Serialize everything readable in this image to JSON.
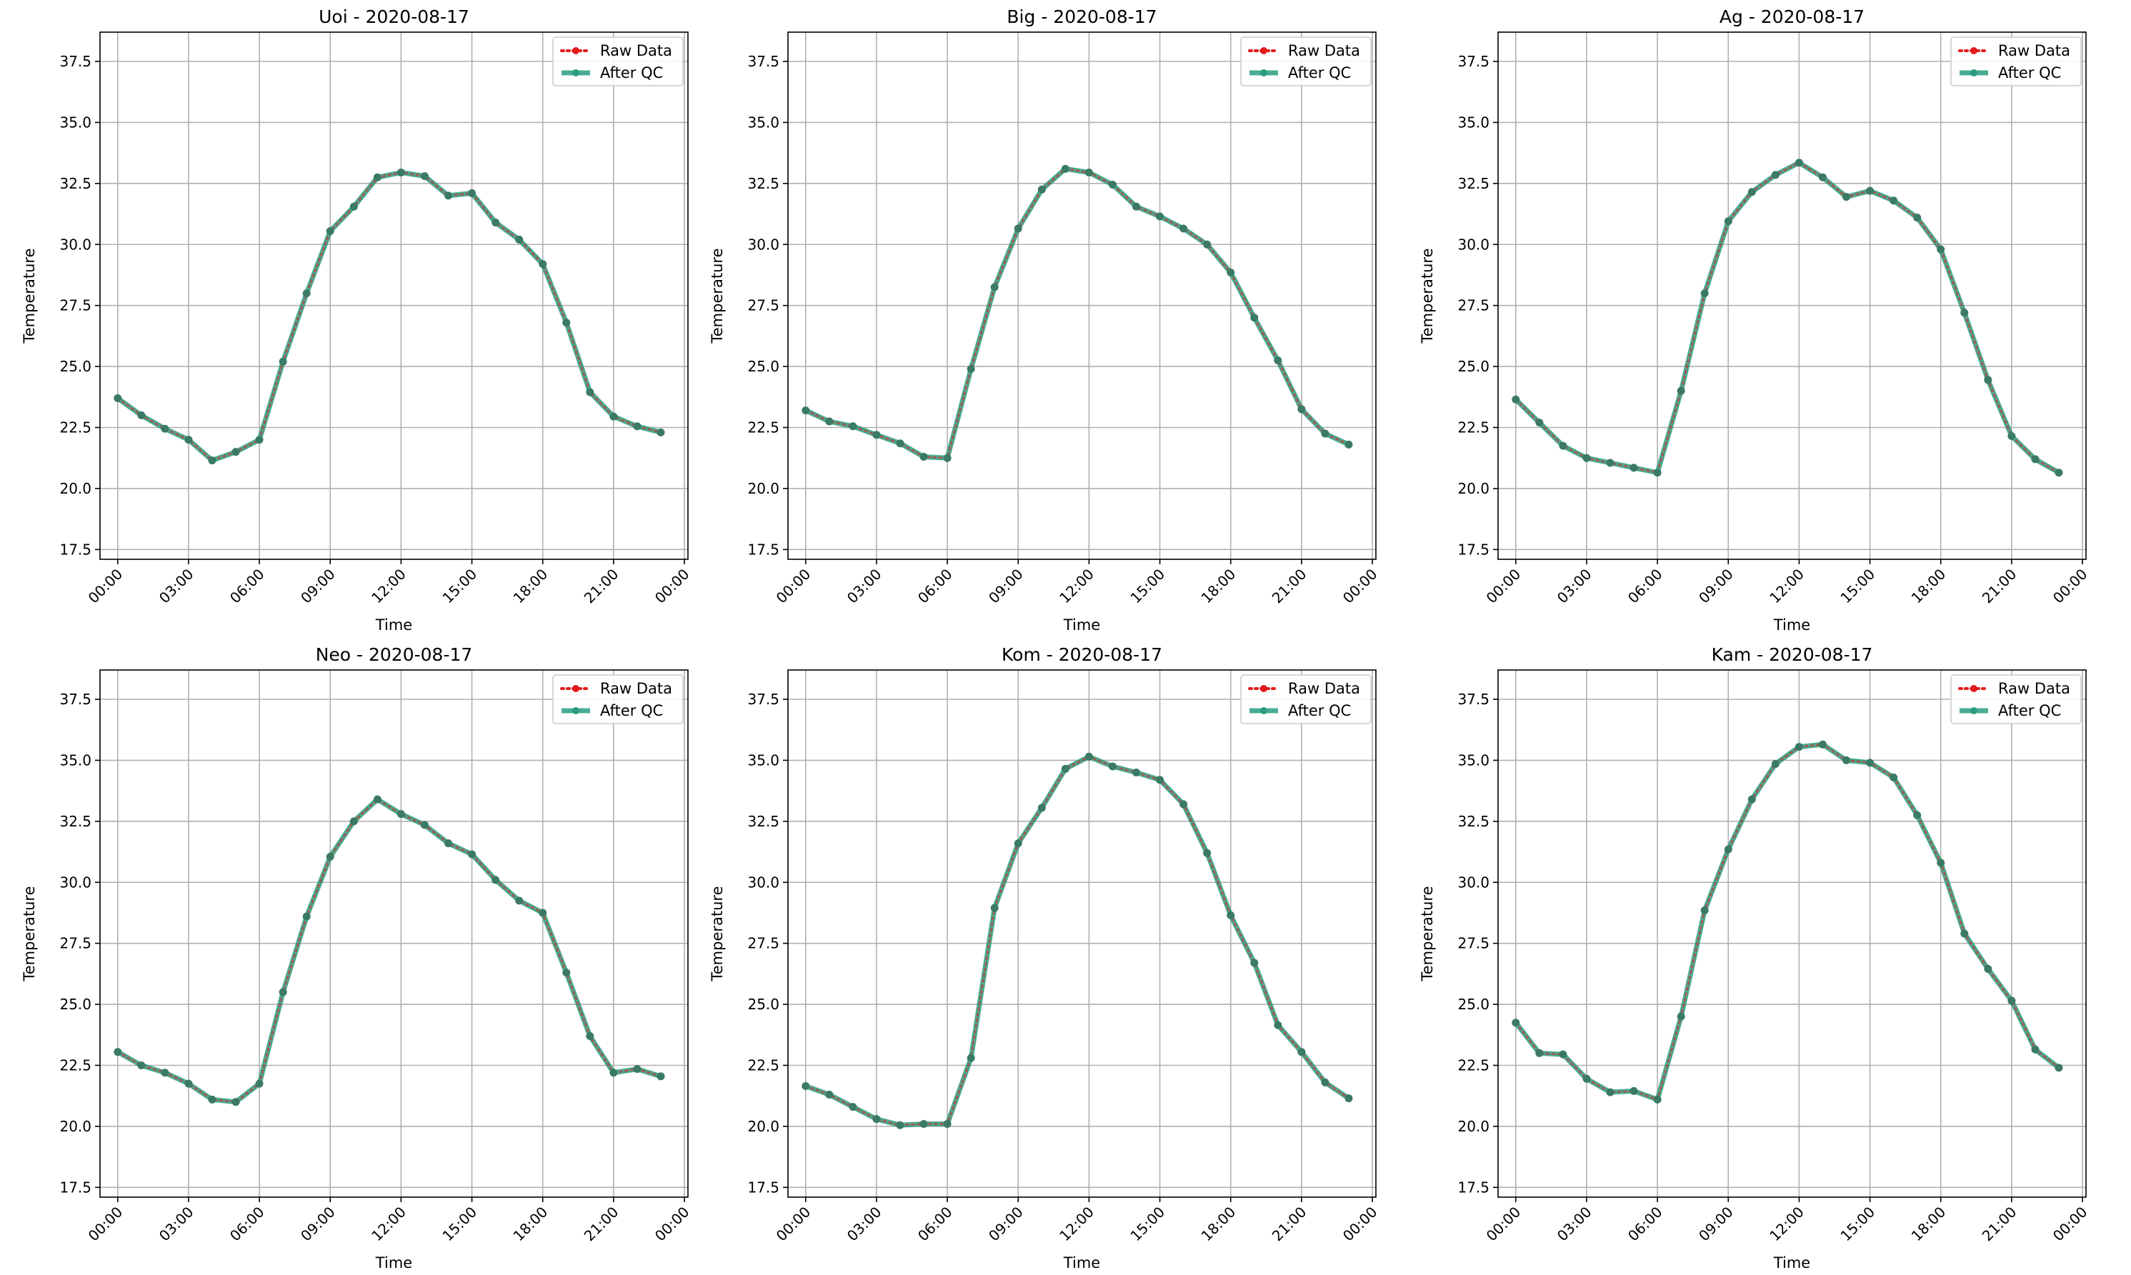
{
  "chart_data": [
    {
      "type": "line",
      "title": "Uoi - 2020-08-17",
      "xlabel": "Time",
      "ylabel": "Temperature",
      "ylim": [
        17.1,
        38.7
      ],
      "xlim": [
        -0.75,
        24.15
      ],
      "xticks": [
        0,
        3,
        6,
        9,
        12,
        15,
        18,
        21,
        24
      ],
      "xtick_labels": [
        "00:00",
        "03:00",
        "06:00",
        "09:00",
        "12:00",
        "15:00",
        "18:00",
        "21:00",
        "00:00"
      ],
      "yticks": [
        17.5,
        20.0,
        22.5,
        25.0,
        27.5,
        30.0,
        32.5,
        35.0,
        37.5
      ],
      "ytick_labels": [
        "17.5",
        "20.0",
        "22.5",
        "25.0",
        "27.5",
        "30.0",
        "32.5",
        "35.0",
        "37.5"
      ],
      "grid": true,
      "legend_position": "top-right",
      "x": [
        0,
        1,
        2,
        3,
        4,
        5,
        6,
        7,
        8,
        9,
        10,
        11,
        12,
        13,
        14,
        15,
        16,
        17,
        18,
        19,
        20,
        21,
        22,
        23
      ],
      "series": [
        {
          "name": "Raw Data",
          "color": "#e41a1c",
          "style": "dotted",
          "values": [
            23.7,
            23.0,
            22.45,
            22.0,
            21.15,
            21.5,
            22.0,
            25.2,
            28.0,
            30.55,
            31.55,
            32.75,
            32.95,
            32.8,
            32.0,
            32.1,
            30.9,
            30.2,
            29.2,
            26.8,
            23.95,
            22.95,
            22.55,
            22.3
          ]
        },
        {
          "name": "After QC",
          "color": "#2a9d7f",
          "style": "solid",
          "values": [
            23.7,
            23.0,
            22.45,
            22.0,
            21.15,
            21.5,
            22.0,
            25.2,
            28.0,
            30.55,
            31.55,
            32.75,
            32.95,
            32.8,
            32.0,
            32.1,
            30.9,
            30.2,
            29.2,
            26.8,
            23.95,
            22.95,
            22.55,
            22.3
          ]
        }
      ]
    },
    {
      "type": "line",
      "title": "Big - 2020-08-17",
      "xlabel": "Time",
      "ylabel": "Temperature",
      "ylim": [
        17.1,
        38.7
      ],
      "xlim": [
        -0.75,
        24.15
      ],
      "xticks": [
        0,
        3,
        6,
        9,
        12,
        15,
        18,
        21,
        24
      ],
      "xtick_labels": [
        "00:00",
        "03:00",
        "06:00",
        "09:00",
        "12:00",
        "15:00",
        "18:00",
        "21:00",
        "00:00"
      ],
      "yticks": [
        17.5,
        20.0,
        22.5,
        25.0,
        27.5,
        30.0,
        32.5,
        35.0,
        37.5
      ],
      "ytick_labels": [
        "17.5",
        "20.0",
        "22.5",
        "25.0",
        "27.5",
        "30.0",
        "32.5",
        "35.0",
        "37.5"
      ],
      "grid": true,
      "legend_position": "top-right",
      "x": [
        0,
        1,
        2,
        3,
        4,
        5,
        6,
        7,
        8,
        9,
        10,
        11,
        12,
        13,
        14,
        15,
        16,
        17,
        18,
        19,
        20,
        21,
        22,
        23
      ],
      "series": [
        {
          "name": "Raw Data",
          "color": "#e41a1c",
          "style": "dotted",
          "values": [
            23.2,
            22.75,
            22.55,
            22.2,
            21.85,
            21.3,
            21.25,
            24.9,
            28.25,
            30.65,
            32.25,
            33.1,
            32.95,
            32.45,
            31.55,
            31.15,
            30.65,
            30.0,
            28.85,
            27.0,
            25.25,
            23.25,
            22.25,
            21.8
          ]
        },
        {
          "name": "After QC",
          "color": "#2a9d7f",
          "style": "solid",
          "values": [
            23.2,
            22.75,
            22.55,
            22.2,
            21.85,
            21.3,
            21.25,
            24.9,
            28.25,
            30.65,
            32.25,
            33.1,
            32.95,
            32.45,
            31.55,
            31.15,
            30.65,
            30.0,
            28.85,
            27.0,
            25.25,
            23.25,
            22.25,
            21.8
          ]
        }
      ]
    },
    {
      "type": "line",
      "title": "Ag - 2020-08-17",
      "xlabel": "Time",
      "ylabel": "Temperature",
      "ylim": [
        17.1,
        38.7
      ],
      "xlim": [
        -0.75,
        24.15
      ],
      "xticks": [
        0,
        3,
        6,
        9,
        12,
        15,
        18,
        21,
        24
      ],
      "xtick_labels": [
        "00:00",
        "03:00",
        "06:00",
        "09:00",
        "12:00",
        "15:00",
        "18:00",
        "21:00",
        "00:00"
      ],
      "yticks": [
        17.5,
        20.0,
        22.5,
        25.0,
        27.5,
        30.0,
        32.5,
        35.0,
        37.5
      ],
      "ytick_labels": [
        "17.5",
        "20.0",
        "22.5",
        "25.0",
        "27.5",
        "30.0",
        "32.5",
        "35.0",
        "37.5"
      ],
      "grid": true,
      "legend_position": "top-right",
      "x": [
        0,
        1,
        2,
        3,
        4,
        5,
        6,
        7,
        8,
        9,
        10,
        11,
        12,
        13,
        14,
        15,
        16,
        17,
        18,
        19,
        20,
        21,
        22,
        23
      ],
      "series": [
        {
          "name": "Raw Data",
          "color": "#e41a1c",
          "style": "dotted",
          "values": [
            23.65,
            22.7,
            21.75,
            21.25,
            21.05,
            20.85,
            20.65,
            24.0,
            28.0,
            30.95,
            32.15,
            32.85,
            33.35,
            32.75,
            31.95,
            32.2,
            31.8,
            31.1,
            29.8,
            27.2,
            24.45,
            22.15,
            21.2,
            20.65
          ]
        },
        {
          "name": "After QC",
          "color": "#2a9d7f",
          "style": "solid",
          "values": [
            23.65,
            22.7,
            21.75,
            21.25,
            21.05,
            20.85,
            20.65,
            24.0,
            28.0,
            30.95,
            32.15,
            32.85,
            33.35,
            32.75,
            31.95,
            32.2,
            31.8,
            31.1,
            29.8,
            27.2,
            24.45,
            22.15,
            21.2,
            20.65
          ]
        }
      ]
    },
    {
      "type": "line",
      "title": "Neo - 2020-08-17",
      "xlabel": "Time",
      "ylabel": "Temperature",
      "ylim": [
        17.1,
        38.7
      ],
      "xlim": [
        -0.75,
        24.15
      ],
      "xticks": [
        0,
        3,
        6,
        9,
        12,
        15,
        18,
        21,
        24
      ],
      "xtick_labels": [
        "00:00",
        "03:00",
        "06:00",
        "09:00",
        "12:00",
        "15:00",
        "18:00",
        "21:00",
        "00:00"
      ],
      "yticks": [
        17.5,
        20.0,
        22.5,
        25.0,
        27.5,
        30.0,
        32.5,
        35.0,
        37.5
      ],
      "ytick_labels": [
        "17.5",
        "20.0",
        "22.5",
        "25.0",
        "27.5",
        "30.0",
        "32.5",
        "35.0",
        "37.5"
      ],
      "grid": true,
      "legend_position": "top-right",
      "x": [
        0,
        1,
        2,
        3,
        4,
        5,
        6,
        7,
        8,
        9,
        10,
        11,
        12,
        13,
        14,
        15,
        16,
        17,
        18,
        19,
        20,
        21,
        22,
        23
      ],
      "series": [
        {
          "name": "Raw Data",
          "color": "#e41a1c",
          "style": "dotted",
          "values": [
            23.05,
            22.5,
            22.2,
            21.75,
            21.1,
            21.0,
            21.75,
            25.5,
            28.6,
            31.05,
            32.5,
            33.4,
            32.8,
            32.35,
            31.6,
            31.15,
            30.1,
            29.25,
            28.75,
            26.3,
            23.7,
            22.2,
            22.35,
            22.05
          ]
        },
        {
          "name": "After QC",
          "color": "#2a9d7f",
          "style": "solid",
          "values": [
            23.05,
            22.5,
            22.2,
            21.75,
            21.1,
            21.0,
            21.75,
            25.5,
            28.6,
            31.05,
            32.5,
            33.4,
            32.8,
            32.35,
            31.6,
            31.15,
            30.1,
            29.25,
            28.75,
            26.3,
            23.7,
            22.2,
            22.35,
            22.05
          ]
        }
      ]
    },
    {
      "type": "line",
      "title": "Kom - 2020-08-17",
      "xlabel": "Time",
      "ylabel": "Temperature",
      "ylim": [
        17.1,
        38.7
      ],
      "xlim": [
        -0.75,
        24.15
      ],
      "xticks": [
        0,
        3,
        6,
        9,
        12,
        15,
        18,
        21,
        24
      ],
      "xtick_labels": [
        "00:00",
        "03:00",
        "06:00",
        "09:00",
        "12:00",
        "15:00",
        "18:00",
        "21:00",
        "00:00"
      ],
      "yticks": [
        17.5,
        20.0,
        22.5,
        25.0,
        27.5,
        30.0,
        32.5,
        35.0,
        37.5
      ],
      "ytick_labels": [
        "17.5",
        "20.0",
        "22.5",
        "25.0",
        "27.5",
        "30.0",
        "32.5",
        "35.0",
        "37.5"
      ],
      "grid": true,
      "legend_position": "top-right",
      "x": [
        0,
        1,
        2,
        3,
        4,
        5,
        6,
        7,
        8,
        9,
        10,
        11,
        12,
        13,
        14,
        15,
        16,
        17,
        18,
        19,
        20,
        21,
        22,
        23
      ],
      "series": [
        {
          "name": "Raw Data",
          "color": "#e41a1c",
          "style": "dotted",
          "values": [
            21.65,
            21.3,
            20.8,
            20.3,
            20.05,
            20.1,
            20.1,
            22.8,
            28.95,
            31.6,
            33.05,
            34.65,
            35.15,
            34.75,
            34.5,
            34.2,
            33.2,
            31.2,
            28.65,
            26.7,
            24.15,
            23.05,
            21.8,
            21.15
          ]
        },
        {
          "name": "After QC",
          "color": "#2a9d7f",
          "style": "solid",
          "values": [
            21.65,
            21.3,
            20.8,
            20.3,
            20.05,
            20.1,
            20.1,
            22.8,
            28.95,
            31.6,
            33.05,
            34.65,
            35.15,
            34.75,
            34.5,
            34.2,
            33.2,
            31.2,
            28.65,
            26.7,
            24.15,
            23.05,
            21.8,
            21.15
          ]
        }
      ]
    },
    {
      "type": "line",
      "title": "Kam - 2020-08-17",
      "xlabel": "Time",
      "ylabel": "Temperature",
      "ylim": [
        17.1,
        38.7
      ],
      "xlim": [
        -0.75,
        24.15
      ],
      "xticks": [
        0,
        3,
        6,
        9,
        12,
        15,
        18,
        21,
        24
      ],
      "xtick_labels": [
        "00:00",
        "03:00",
        "06:00",
        "09:00",
        "12:00",
        "15:00",
        "18:00",
        "21:00",
        "00:00"
      ],
      "yticks": [
        17.5,
        20.0,
        22.5,
        25.0,
        27.5,
        30.0,
        32.5,
        35.0,
        37.5
      ],
      "ytick_labels": [
        "17.5",
        "20.0",
        "22.5",
        "25.0",
        "27.5",
        "30.0",
        "32.5",
        "35.0",
        "37.5"
      ],
      "grid": true,
      "legend_position": "top-right",
      "x": [
        0,
        1,
        2,
        3,
        4,
        5,
        6,
        7,
        8,
        9,
        10,
        11,
        12,
        13,
        14,
        15,
        16,
        17,
        18,
        19,
        20,
        21,
        22,
        23
      ],
      "series": [
        {
          "name": "Raw Data",
          "color": "#e41a1c",
          "style": "dotted",
          "values": [
            24.25,
            23.0,
            22.95,
            21.95,
            21.4,
            21.45,
            21.1,
            24.5,
            28.85,
            31.35,
            33.4,
            34.85,
            35.55,
            35.65,
            35.0,
            34.9,
            34.3,
            32.75,
            30.8,
            27.9,
            26.45,
            25.15,
            23.15,
            22.4
          ]
        },
        {
          "name": "After QC",
          "color": "#2a9d7f",
          "style": "solid",
          "values": [
            24.25,
            23.0,
            22.95,
            21.95,
            21.4,
            21.45,
            21.1,
            24.5,
            28.85,
            31.35,
            33.4,
            34.85,
            35.55,
            35.65,
            35.0,
            34.9,
            34.3,
            32.75,
            30.8,
            27.9,
            26.45,
            25.15,
            23.15,
            22.4
          ]
        }
      ]
    }
  ]
}
